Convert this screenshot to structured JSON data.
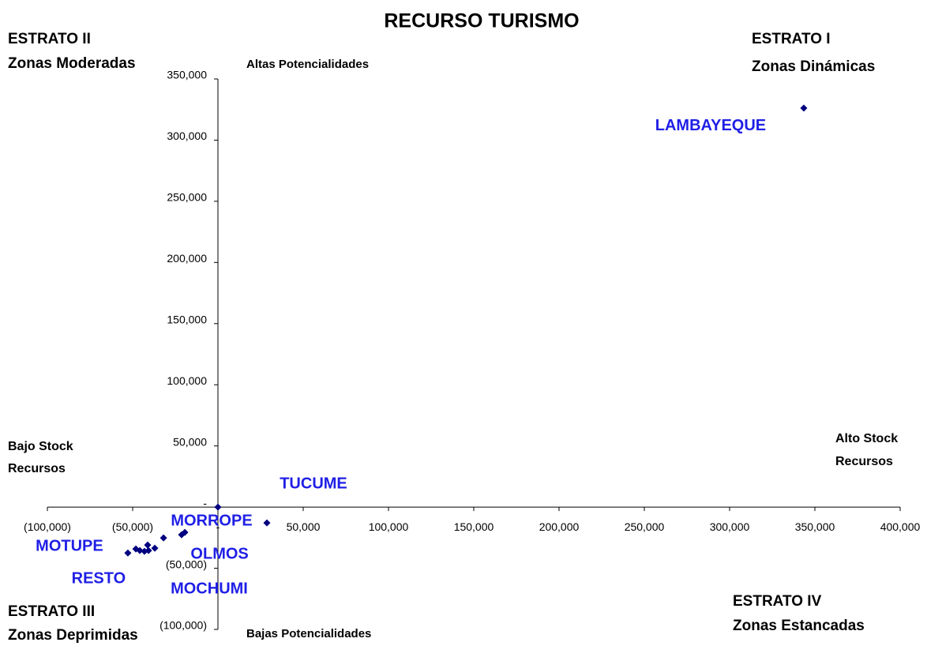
{
  "chart_data": {
    "type": "scatter",
    "title": "RECURSO TURISMO",
    "annotations": [
      "ESTRATO II",
      "Zonas Moderadas",
      "Altas Potencialidades",
      "ESTRATO I",
      "Zonas Dinámicas",
      "Bajo Stock",
      "Recursos",
      "Alto Stock",
      "Recursos",
      "ESTRATO III",
      "Zonas Deprimidas",
      "Bajas Potencialidades",
      "ESTRATO IV",
      "Zonas Estancadas"
    ],
    "color": "#000080",
    "x": [
      343500,
      0,
      28700,
      -19400,
      -21300,
      -31900,
      -37000,
      -41200,
      -40700,
      -43100,
      -45800,
      -48100,
      -52800
    ],
    "values": [
      326200,
      0,
      -12900,
      -20700,
      -22600,
      -25200,
      -33600,
      -31000,
      -35500,
      -36200,
      -35500,
      -34200,
      -37500
    ],
    "labels": [
      "LAMBAYEQUE",
      "TUCUME",
      "MORROPE",
      "OLMOS",
      "MOCHUMI",
      null,
      null,
      null,
      null,
      "RESTO",
      null,
      null,
      "MOTUPE"
    ],
    "xlim": [
      -100000,
      400000
    ],
    "xticks": [
      {
        "value": -100000,
        "label": "(100,000)"
      },
      {
        "value": -50000,
        "label": "(50,000)"
      },
      {
        "value": 0,
        "label": "-"
      },
      {
        "value": 50000,
        "label": "50,000"
      },
      {
        "value": 100000,
        "label": "100,000"
      },
      {
        "value": 150000,
        "label": "150,000"
      },
      {
        "value": 200000,
        "label": "200,000"
      },
      {
        "value": 250000,
        "label": "250,000"
      },
      {
        "value": 300000,
        "label": "300,000"
      },
      {
        "value": 350000,
        "label": "350,000"
      },
      {
        "value": 400000,
        "label": "400,000"
      }
    ],
    "ylim": [
      -100000,
      350000
    ],
    "yticks": [
      {
        "value": -100000,
        "label": "(100,000)"
      },
      {
        "value": -50000,
        "label": "(50,000)"
      },
      {
        "value": 0,
        "label": "-"
      },
      {
        "value": 50000,
        "label": "50,000"
      },
      {
        "value": 100000,
        "label": "100,000"
      },
      {
        "value": 150000,
        "label": "150,000"
      },
      {
        "value": 200000,
        "label": "200,000"
      },
      {
        "value": 250000,
        "label": "250,000"
      },
      {
        "value": 300000,
        "label": "300,000"
      },
      {
        "value": 350000,
        "label": "350,000"
      }
    ]
  }
}
